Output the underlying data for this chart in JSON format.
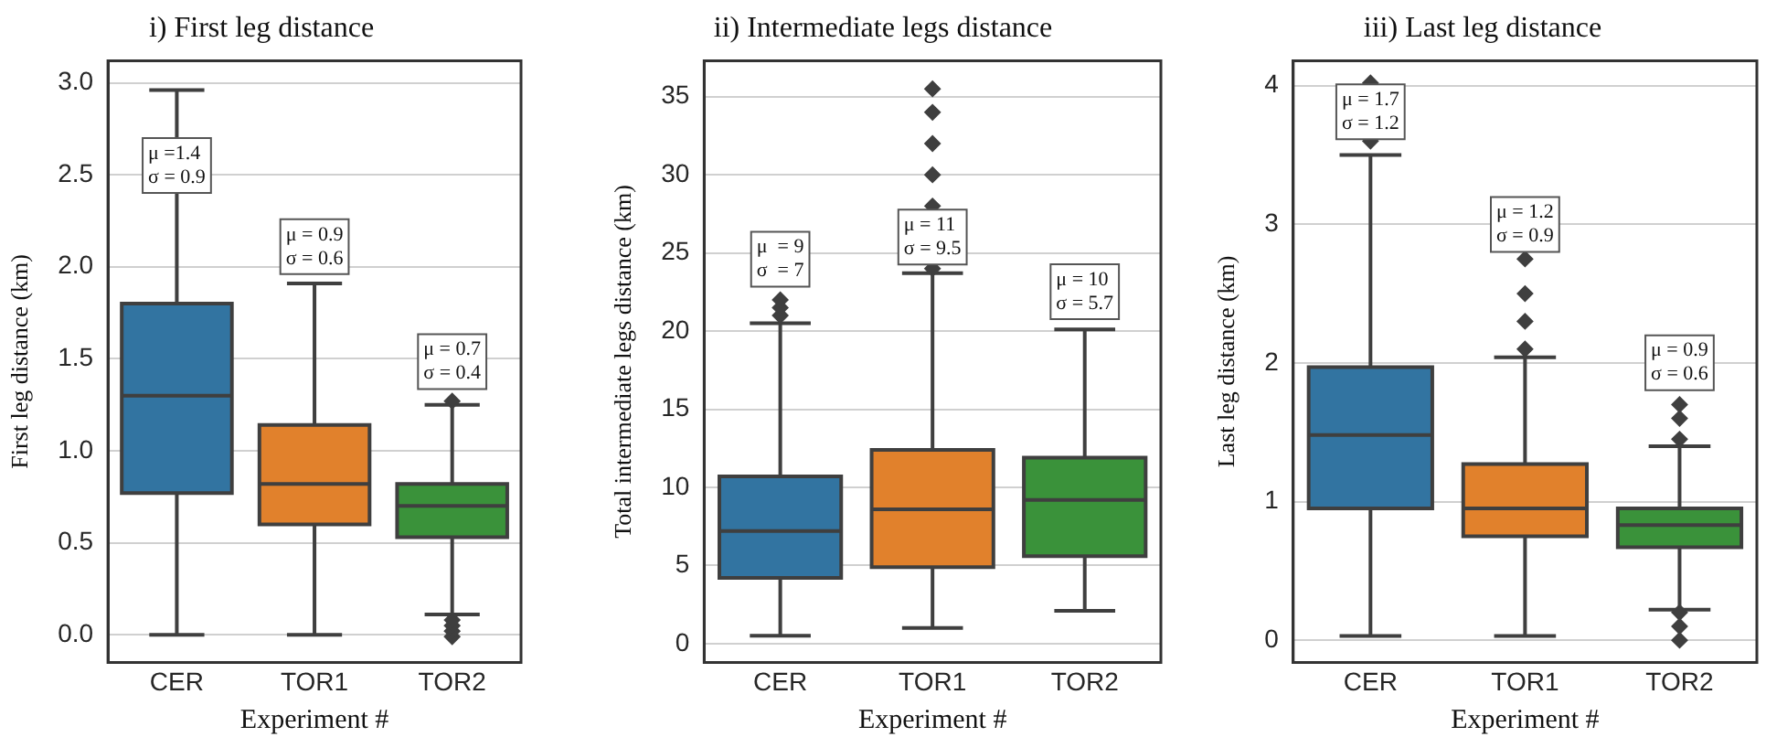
{
  "chart_data": [
    {
      "type": "box",
      "title": "i) First leg distance",
      "xlabel": "Experiment #",
      "ylabel": "First leg distance (km)",
      "categories": [
        "CER",
        "TOR1",
        "TOR2"
      ],
      "colors": [
        "#3274a1",
        "#e1812c",
        "#3a923a"
      ],
      "boxes": [
        {
          "low": 0,
          "q1": 0.77,
          "median": 1.3,
          "q3": 1.8,
          "high": 2.96
        },
        {
          "low": 0,
          "q1": 0.6,
          "median": 0.82,
          "q3": 1.14,
          "high": 1.91
        },
        {
          "low": 0.11,
          "q1": 0.53,
          "median": 0.7,
          "q3": 0.82,
          "high": 1.25,
          "outliers": [
            -0.01,
            0.02,
            0.05,
            0.08,
            1.27
          ]
        }
      ],
      "ylim": [
        -0.15,
        3.12
      ],
      "yticks": [
        {
          "value": 0,
          "label": "0.0"
        },
        0.5,
        {
          "value": 1,
          "label": "1.0"
        },
        1.5,
        {
          "value": 2,
          "label": "2.0"
        },
        2.5,
        {
          "value": 3,
          "label": "3.0"
        }
      ],
      "grid": "y",
      "annotations": [
        "μ =1.4\nσ = 0.9",
        "μ = 0.9\nσ = 0.6",
        "μ = 0.7\nσ = 0.4"
      ]
    },
    {
      "type": "box",
      "title": "ii) Intermediate legs distance",
      "xlabel": "Experiment #",
      "ylabel": "Total intermediate legs distance (km)",
      "categories": [
        "CER",
        "TOR1",
        "TOR2"
      ],
      "colors": [
        "#3274a1",
        "#e1812c",
        "#3a923a"
      ],
      "boxes": [
        {
          "low": 0.5,
          "q1": 4.2,
          "median": 7.2,
          "q3": 10.7,
          "high": 20.5,
          "outliers": [
            21,
            21.5,
            22
          ]
        },
        {
          "low": 1,
          "q1": 4.9,
          "median": 8.6,
          "q3": 12.4,
          "high": 23.7,
          "outliers": [
            24,
            26,
            28,
            30,
            32,
            34,
            35.5
          ]
        },
        {
          "low": 2.1,
          "q1": 5.6,
          "median": 9.2,
          "q3": 11.9,
          "high": 20.1
        }
      ],
      "ylim": [
        -1.2,
        37.3
      ],
      "yticks": [
        0,
        5,
        10,
        15,
        20,
        25,
        30,
        35
      ],
      "grid": "y",
      "annotations": [
        "μ  = 9\nσ  = 7",
        "μ = 11\nσ = 9.5",
        "μ = 10\nσ = 5.7"
      ]
    },
    {
      "type": "box",
      "title": "iii) Last leg distance",
      "xlabel": "Experiment #",
      "ylabel": "Last leg distance (km)",
      "categories": [
        "CER",
        "TOR1",
        "TOR2"
      ],
      "colors": [
        "#3274a1",
        "#e1812c",
        "#3a923a"
      ],
      "boxes": [
        {
          "low": 0.03,
          "q1": 0.95,
          "median": 1.48,
          "q3": 1.97,
          "high": 3.5,
          "outliers": [
            3.6,
            4.02
          ]
        },
        {
          "low": 0.03,
          "q1": 0.75,
          "median": 0.95,
          "q3": 1.27,
          "high": 2.04,
          "outliers": [
            2.1,
            2.3,
            2.5,
            2.75
          ]
        },
        {
          "low": 0.22,
          "q1": 0.67,
          "median": 0.83,
          "q3": 0.95,
          "high": 1.4,
          "outliers": [
            0,
            0.1,
            0.2,
            1.45,
            1.6,
            1.7
          ]
        }
      ],
      "ylim": [
        -0.16,
        4.18
      ],
      "yticks": [
        0,
        1,
        2,
        3,
        4
      ],
      "grid": "y",
      "annotations": [
        "μ = 1.7\nσ = 1.2",
        "μ = 1.2\nσ = 0.9",
        "μ = 0.9\nσ = 0.6"
      ]
    }
  ]
}
